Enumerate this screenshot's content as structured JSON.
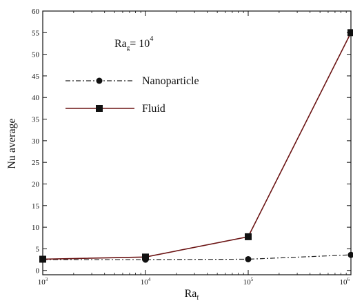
{
  "chart_data": {
    "type": "line",
    "x_scale": "log",
    "x": [
      1000,
      10000,
      100000,
      1000000
    ],
    "x_tick_values": [
      1000,
      10000,
      100000,
      1000000
    ],
    "x_tick_bases": [
      "10",
      "10",
      "10",
      "10"
    ],
    "x_tick_exponents": [
      "3",
      "4",
      "5",
      "6"
    ],
    "xlim": [
      1000,
      1000000
    ],
    "ylim": [
      -1,
      60
    ],
    "y_ticks": [
      0,
      5,
      10,
      15,
      20,
      25,
      30,
      35,
      40,
      45,
      50,
      55,
      60
    ],
    "xlabel": "Ra",
    "xlabel_sub": "f",
    "ylabel": "Nu average",
    "annotation": {
      "base": "Ra",
      "sub": "g",
      "rel": "= 10",
      "sup": "4"
    },
    "legend_position": "upper-left",
    "grid": false,
    "series": [
      {
        "name": "Nanoparticle",
        "values": [
          2.5,
          2.5,
          2.6,
          3.6
        ],
        "color": "#222222",
        "line_style": "dash-dot",
        "marker": "circle"
      },
      {
        "name": "Fluid",
        "values": [
          2.6,
          3.1,
          7.8,
          55.0
        ],
        "color": "#6b1414",
        "line_style": "solid",
        "marker": "square"
      }
    ]
  }
}
